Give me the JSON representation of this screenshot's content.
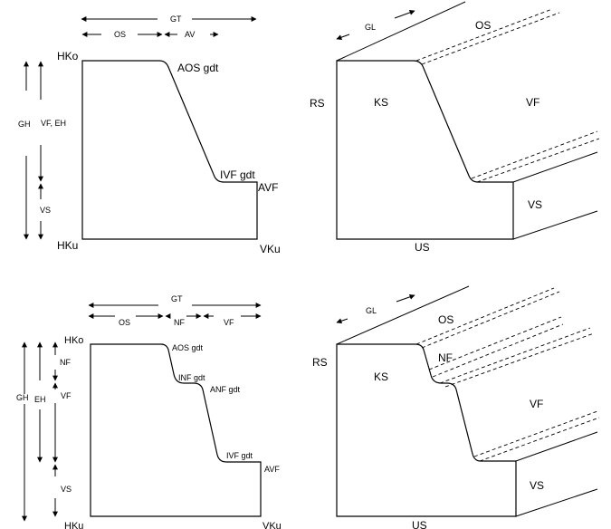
{
  "diagram1": {
    "dim_top": "GT",
    "dim_os": "OS",
    "dim_av": "AV",
    "dim_vf_eh": "VF, EH",
    "dim_gh": "GH",
    "dim_vs": "VS",
    "hko": "HKo",
    "hku": "HKu",
    "vku": "VKu",
    "aos": "AOS gdt",
    "ivf": "IVF gdt",
    "avf": "AVF"
  },
  "diagram2": {
    "gl": "GL",
    "os": "OS",
    "rs": "RS",
    "ks": "KS",
    "vf": "VF",
    "vs": "VS",
    "us": "US"
  },
  "diagram3": {
    "dim_top": "GT",
    "dim_os": "OS",
    "dim_nf": "NF",
    "dim_vf": "VF",
    "nf_side": "NF",
    "eh": "EH",
    "gh": "GH",
    "vf_side": "VF",
    "vs_side": "VS",
    "hko": "HKo",
    "hku": "HKu",
    "vku": "VKu",
    "aos": "AOS gdt",
    "inf": "INF gdt",
    "anf": "ANF gdt",
    "ivf": "IVF gdt",
    "avf": "AVF"
  },
  "diagram4": {
    "gl": "GL",
    "os": "OS",
    "nf": "NF",
    "rs": "RS",
    "ks": "KS",
    "vf": "VF",
    "vs": "VS",
    "us": "US"
  }
}
